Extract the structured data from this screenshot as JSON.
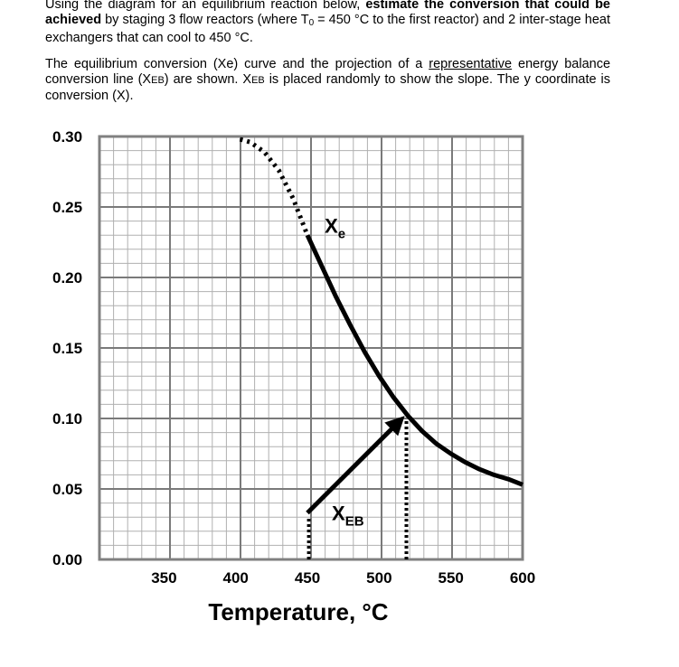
{
  "problem": {
    "p1_pre": "Using the diagram for an equilibrium reaction below, ",
    "p1_bold": "estimate the conversion that could be achieved",
    "p1_mid": " by staging 3 flow reactors (where T",
    "p1_sub": "0",
    "p1_post": " = 450 °C to the first reactor) and 2 inter-stage heat exchangers that can cool to 450 °C.",
    "p2_a": "The equilibrium conversion (Xe) curve and the projection of a ",
    "p2_u": "representative",
    "p2_b": " energy balance conversion line (X",
    "p2_sc1": "EB",
    "p2_c": ") are shown. X",
    "p2_sc2": "EB",
    "p2_d": " is placed randomly to show the slope. The y coordinate is conversion (X)."
  },
  "chart_data": {
    "type": "line",
    "xlabel": "Temperature, °C",
    "ylabel": "",
    "xlim": [
      305,
      600
    ],
    "ylim": [
      0,
      0.3
    ],
    "x_ticks": [
      350,
      400,
      450,
      500,
      550,
      600
    ],
    "x_tick_labels": [
      "350",
      "400",
      "450",
      "500",
      "550",
      "600"
    ],
    "y_ticks": [
      0,
      0.05,
      0.1,
      0.15,
      0.2,
      0.25,
      0.3
    ],
    "y_tick_labels": [
      "0.00",
      "0.05",
      "0.10",
      "0.15",
      "0.20",
      "0.25",
      "0.30"
    ],
    "grid": true,
    "series": [
      {
        "name": "Xe",
        "style": "solid",
        "x": [
          450,
          460,
          470,
          480,
          490,
          500,
          510,
          520,
          530,
          540,
          550,
          560,
          570,
          580,
          590,
          600
        ],
        "y": [
          0.23,
          0.208,
          0.186,
          0.166,
          0.147,
          0.13,
          0.115,
          0.102,
          0.091,
          0.082,
          0.075,
          0.069,
          0.064,
          0.06,
          0.057,
          0.053
        ]
      },
      {
        "name": "Xe-extrapolated",
        "style": "dotted",
        "x": [
          403,
          410,
          420,
          430,
          440,
          450
        ],
        "y": [
          0.298,
          0.296,
          0.289,
          0.276,
          0.256,
          0.23
        ]
      },
      {
        "name": "XEB",
        "style": "arrow",
        "x": [
          450,
          515
        ],
        "y": [
          0.033,
          0.099
        ]
      },
      {
        "name": "drop-450",
        "style": "dotted-vertical",
        "x": [
          451,
          451
        ],
        "y": [
          0.0,
          0.03
        ]
      },
      {
        "name": "drop-520",
        "style": "dotted-vertical",
        "x": [
          519,
          519
        ],
        "y": [
          0.0,
          0.1
        ]
      }
    ],
    "annotations": [
      {
        "text": "X",
        "sub": "e",
        "x": 462,
        "y": 0.237
      },
      {
        "text": "X",
        "sub": "EB",
        "x": 467,
        "y": 0.033
      }
    ]
  }
}
